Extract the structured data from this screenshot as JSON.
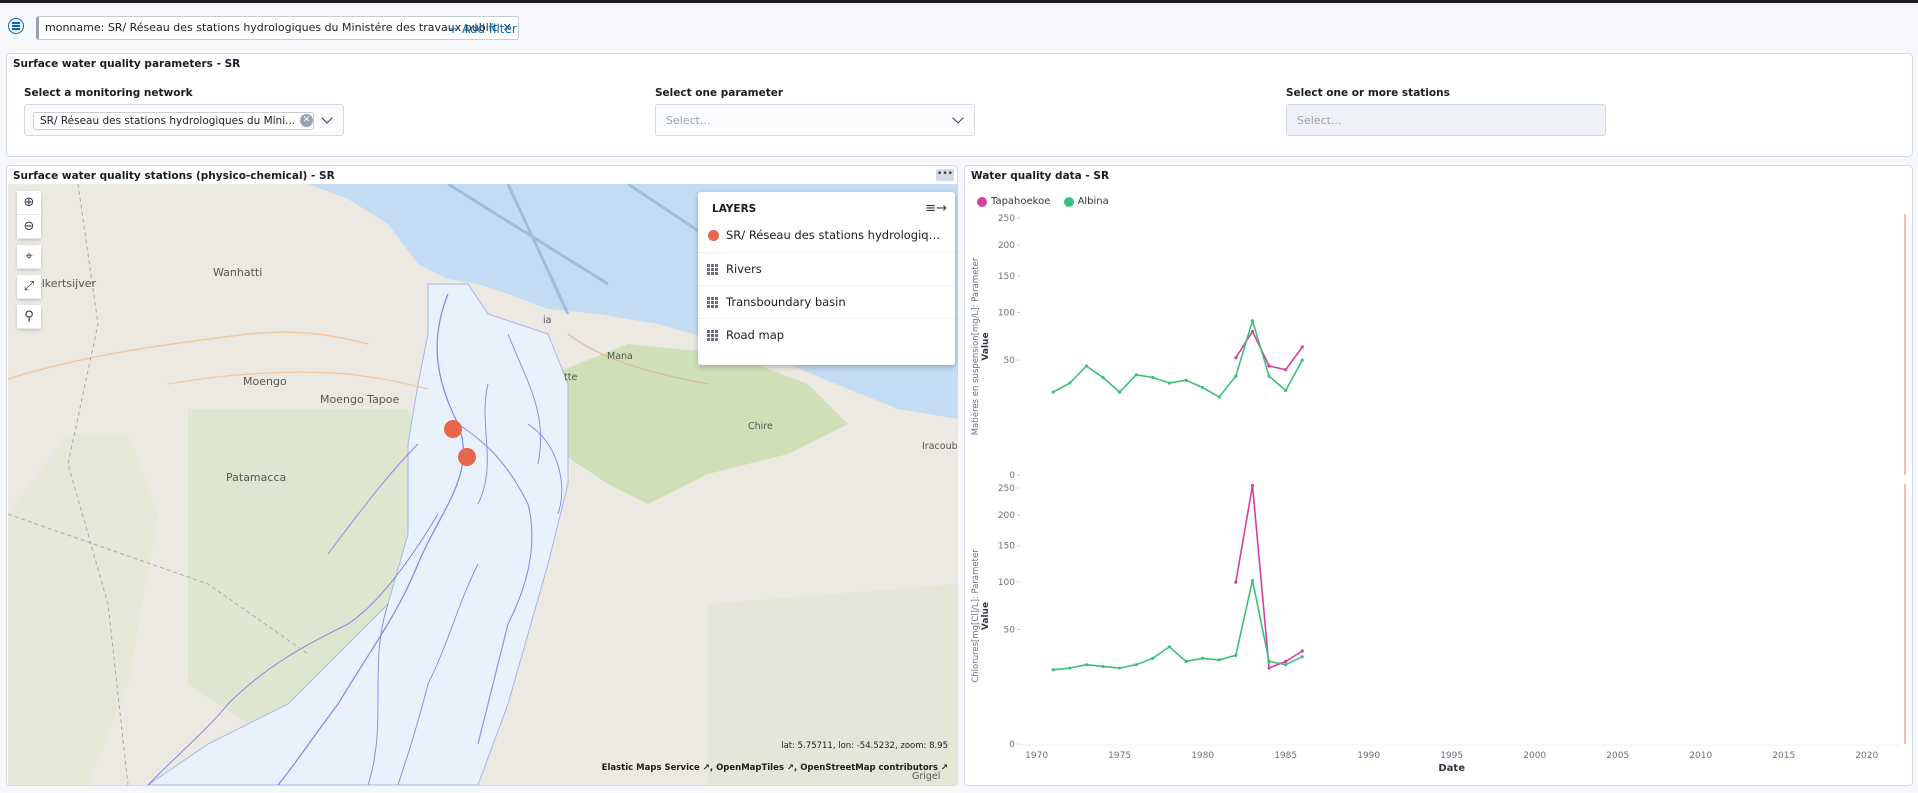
{
  "filter": {
    "pill_text": "monname: SR/ Réseau des stations hydrologiques du Ministére des travaux public",
    "add_label": "+ Add filter"
  },
  "params_panel": {
    "title": "Surface water quality parameters - SR",
    "network": {
      "label": "Select a monitoring network",
      "tag": "SR/ Réseau des stations hydrologiques du Mini..."
    },
    "parameter": {
      "label": "Select one parameter",
      "placeholder": "Select..."
    },
    "stations": {
      "label": "Select one or more stations",
      "placeholder": "Select..."
    }
  },
  "map_panel": {
    "title": "Surface water quality stations (physico-chemical) - SR",
    "layers_title": "LAYERS",
    "layers": [
      {
        "label": "SR/ Réseau des stations hydrologiques ...",
        "icon": "circle-dot-icon"
      },
      {
        "label": "Rivers",
        "icon": "grid-icon"
      },
      {
        "label": "Transboundary basin",
        "icon": "grid-icon"
      },
      {
        "label": "Road map",
        "icon": "grid-icon"
      }
    ],
    "places": {
      "wanhatti": "Wanhatti",
      "kolkertsijver": "olkertsijver",
      "moengo": "Moengo",
      "moengo_tapoe": "Moengo Tapoe",
      "patamacca": "Patamacca",
      "mana": "Mana",
      "chire": "Chire",
      "iracoubo": "Iracoubo",
      "ria": "ia",
      "tte": "tte",
      "grigel": "Grigel"
    },
    "coords": "lat: 5.75711, lon: -54.5232, zoom: 8.95",
    "attribution": "Elastic Maps Service ↗, OpenMapTiles ↗, OpenStreetMap contributors ↗",
    "colors": {
      "water": "#c3dcf3",
      "land": "#ece9e2",
      "basin": "#e9f1fd",
      "green": "#cfe0b8",
      "station": "#e7664c",
      "river": "#7f86e8"
    }
  },
  "chart_panel": {
    "title": "Water quality data - SR",
    "legend": [
      {
        "name": "Tapahoekoe",
        "color": "#d6409f"
      },
      {
        "name": "Albina",
        "color": "#3ebf7a"
      }
    ],
    "x_title": "Date"
  },
  "chart_data": [
    {
      "type": "line",
      "ylabel": "Matières en suspension[mg/L]: Parameter",
      "ylabel2": "Value",
      "yticks": [
        0,
        50,
        100,
        150,
        200,
        250
      ],
      "xlim": [
        1969,
        2022
      ],
      "series": [
        {
          "name": "Tapahoekoe",
          "x": [
            1982,
            1983,
            1984,
            1985,
            1986
          ],
          "y": [
            52,
            78,
            45,
            42,
            62
          ]
        },
        {
          "name": "Albina",
          "x": [
            1971,
            1972,
            1973,
            1974,
            1975,
            1976,
            1977,
            1978,
            1979,
            1980,
            1981,
            1982,
            1983,
            1984,
            1985,
            1986
          ],
          "y": [
            26,
            32,
            45,
            36,
            26,
            38,
            36,
            32,
            34,
            29,
            23,
            37,
            90,
            37,
            27,
            50
          ]
        }
      ]
    },
    {
      "type": "line",
      "ylabel": "Chlorures[mg[Cl]/L]: Parameter",
      "ylabel2": "Value",
      "xlabel": "Date",
      "yticks": [
        0,
        50,
        100,
        150,
        200,
        250
      ],
      "xticks": [
        1970,
        1975,
        1980,
        1985,
        1990,
        1995,
        2000,
        2005,
        2010,
        2015,
        2020
      ],
      "xlim": [
        1969,
        2022
      ],
      "series": [
        {
          "name": "Tapahoekoe",
          "x": [
            1982,
            1983,
            1984,
            1985,
            1986
          ],
          "y": [
            100,
            255,
            22,
            26,
            33
          ]
        },
        {
          "name": "Albina",
          "x": [
            1971,
            1972,
            1973,
            1974,
            1975,
            1976,
            1977,
            1978,
            1979,
            1980,
            1981,
            1982,
            1983,
            1984,
            1985,
            1986
          ],
          "y": [
            21,
            22,
            24,
            23,
            22,
            24,
            28,
            36,
            26,
            28,
            27,
            30,
            102,
            26,
            24,
            29
          ]
        }
      ]
    }
  ]
}
